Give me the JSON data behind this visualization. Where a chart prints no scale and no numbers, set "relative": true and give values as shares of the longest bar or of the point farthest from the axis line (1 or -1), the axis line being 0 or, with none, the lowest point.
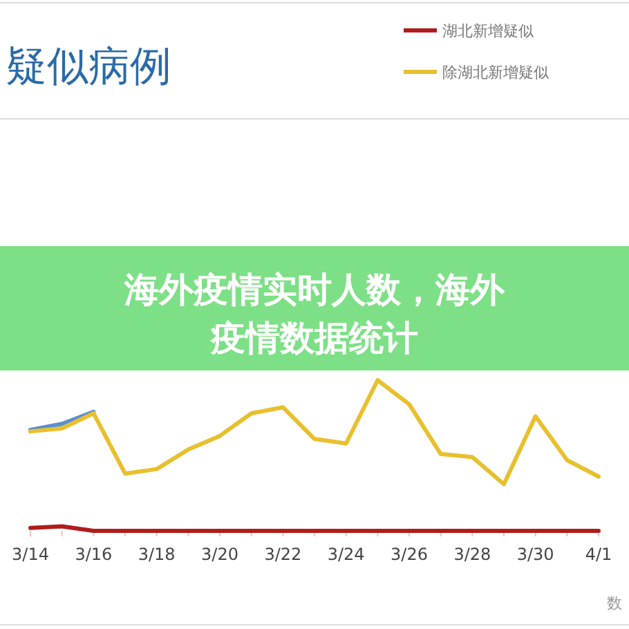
{
  "chart_data": {
    "type": "line",
    "title": "疑似病例",
    "relative": true,
    "categories": [
      "3/14",
      null,
      "3/16",
      null,
      "3/18",
      null,
      "3/20",
      null,
      "3/22",
      null,
      "3/24",
      null,
      "3/26",
      null,
      "3/28",
      null,
      "3/30",
      null,
      "4/1"
    ],
    "series": [
      {
        "name": "湖北新增疑似",
        "color": "#b01c1c",
        "values": [
          0.02,
          0.03,
          0,
          0,
          0,
          0,
          0,
          0,
          0,
          0,
          0,
          0,
          0,
          0,
          0,
          0,
          0,
          0,
          0
        ]
      },
      {
        "color": "#5b8fd0",
        "values": [
          0.67,
          0.71,
          0.79,
          null,
          null,
          null,
          null,
          null,
          null,
          null,
          null,
          null,
          null,
          null,
          null,
          null,
          null,
          null,
          null
        ]
      },
      {
        "name": "除湖北新增疑似",
        "color": "#e8c02e",
        "values": [
          0.66,
          0.68,
          0.78,
          0.38,
          0.41,
          0.54,
          0.63,
          0.78,
          0.82,
          0.61,
          0.58,
          1,
          0.84,
          0.51,
          0.49,
          0.31,
          0.76,
          0.47,
          0.36
        ]
      }
    ],
    "legend": "top right",
    "marker": "none",
    "line_style": "solid",
    "annotations": [
      "海外疫情实时人数，海外疫情数据统计",
      "数"
    ]
  }
}
